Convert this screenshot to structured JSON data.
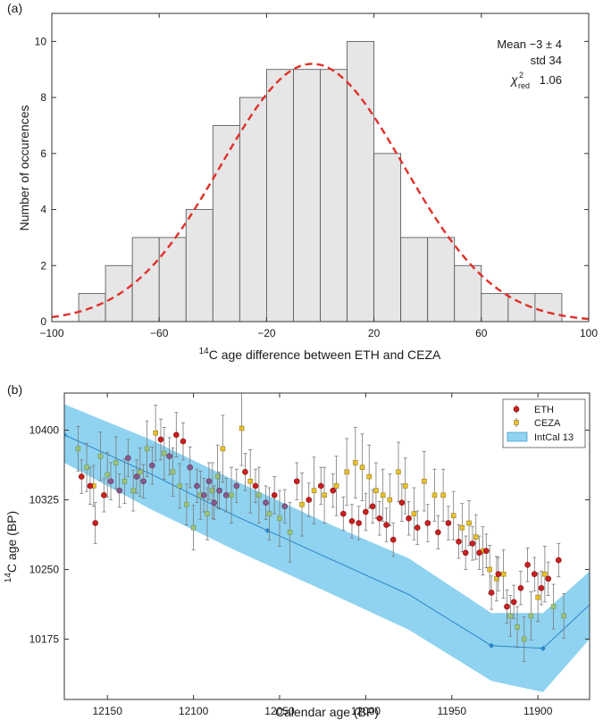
{
  "chart_data": [
    {
      "type": "bar",
      "panel_label": "(a)",
      "xlabel_sup": "14",
      "xlabel_rest": "C age difference between ETH and CEZA",
      "ylabel": "Number of occurences",
      "xlim": [
        -100,
        100
      ],
      "ylim": [
        0,
        11
      ],
      "bin_edges": [
        -90,
        -80,
        -70,
        -60,
        -50,
        -40,
        -30,
        -20,
        -10,
        0,
        10,
        20,
        30,
        40,
        50,
        60,
        70,
        80,
        90
      ],
      "counts": [
        1,
        2,
        3,
        3,
        4,
        7,
        8,
        9,
        9,
        9,
        10,
        6,
        3,
        3,
        2,
        1,
        1,
        1
      ],
      "bar_fill": "#e6e6e6",
      "fit": {
        "type": "gaussian",
        "mean": -3,
        "std": 34,
        "peak": 9.2,
        "color": "#e0302a"
      },
      "x_ticks": [
        -100,
        -60,
        -20,
        20,
        60,
        100
      ],
      "x_tick_labels": [
        "−100",
        "−60",
        "−20",
        "20",
        "60",
        "100"
      ],
      "y_ticks": [
        0,
        2,
        4,
        6,
        8,
        10
      ],
      "y_tick_labels": [
        "0",
        "2",
        "4",
        "6",
        "8",
        "10"
      ],
      "stats": {
        "mean_label": "Mean",
        "mean_value": "−3 ± 4",
        "std_label": "std",
        "std_value": "34",
        "chi_symbol": "χ",
        "chi_sup": "2",
        "chi_sub": "red",
        "chi_value": "1.06"
      }
    },
    {
      "type": "scatter",
      "panel_label": "(b)",
      "xlabel": "Calendar age (BP)",
      "ylabel_sup": "14",
      "ylabel_rest": "C age (BP)",
      "xlim": [
        12175,
        11870
      ],
      "ylim": [
        10110,
        10440
      ],
      "x_reversed": true,
      "x_ticks": [
        12150,
        12100,
        12050,
        12000,
        11950,
        11900
      ],
      "x_tick_labels": [
        "12150",
        "12100",
        "12050",
        "12000",
        "11950",
        "11900"
      ],
      "y_ticks": [
        10175,
        10250,
        10325,
        10400
      ],
      "y_tick_labels": [
        "10175",
        "10250",
        "10325",
        "10400"
      ],
      "legend": {
        "position": "top-right",
        "items": [
          "ETH",
          "CEZA",
          "IntCal 13"
        ]
      },
      "colors": {
        "eth": "#cc1f1f",
        "ceza": "#e8c12c",
        "intcal_band": "#8fd3f0",
        "intcal_line": "#2b84c8",
        "overlap": "#8a5a8c",
        "errorbar": "#7a7a7a"
      },
      "intcal": {
        "x": [
          12175,
          12125,
          12075,
          12025,
          11975,
          11927,
          11897,
          11870
        ],
        "y": [
          10395,
          10353,
          10307,
          10265,
          10223,
          10168,
          10165,
          10212
        ],
        "lo": [
          10365,
          10315,
          10270,
          10228,
          10185,
          10130,
          10118,
          10175
        ],
        "hi": [
          10428,
          10390,
          10345,
          10302,
          10262,
          10203,
          10203,
          10248
        ],
        "markers_x": [
          12175,
          12057,
          11927,
          11897
        ]
      },
      "series": [
        {
          "name": "ETH",
          "x": [
            12165,
            12160,
            12157,
            12152,
            12148,
            12143,
            12138,
            12133,
            12129,
            12124,
            12119,
            12114,
            12110,
            12106,
            12102,
            12098,
            12094,
            12091,
            12088,
            12085,
            12081,
            12075,
            12070,
            12064,
            12058,
            12053,
            12047,
            12040,
            12033,
            12026,
            12019,
            12013,
            12008,
            12004,
            12000,
            11996,
            11992,
            11988,
            11984,
            11979,
            11975,
            11970,
            11964,
            11958,
            11952,
            11946,
            11942,
            11938,
            11934,
            11930,
            11927,
            11923,
            11918,
            11914,
            11910,
            11906,
            11902,
            11898,
            11894,
            11888
          ],
          "y": [
            10350,
            10340,
            10300,
            10330,
            10345,
            10335,
            10370,
            10350,
            10345,
            10362,
            10390,
            10372,
            10395,
            10388,
            10360,
            10340,
            10330,
            10345,
            10322,
            10335,
            10330,
            10340,
            10355,
            10340,
            10322,
            10330,
            10318,
            10345,
            10325,
            10340,
            10335,
            10310,
            10302,
            10300,
            10312,
            10318,
            10305,
            10298,
            10282,
            10322,
            10305,
            10295,
            10300,
            10290,
            10300,
            10280,
            10268,
            10278,
            10268,
            10270,
            10225,
            10245,
            10210,
            10215,
            10230,
            10255,
            10245,
            10230,
            10240,
            10260
          ],
          "err": [
            18,
            20,
            22,
            18,
            20,
            18,
            20,
            18,
            18,
            20,
            22,
            20,
            24,
            20,
            22,
            18,
            18,
            20,
            18,
            20,
            18,
            18,
            20,
            18,
            18,
            20,
            18,
            20,
            18,
            20,
            18,
            18,
            18,
            18,
            20,
            18,
            18,
            18,
            18,
            20,
            18,
            18,
            20,
            18,
            18,
            18,
            18,
            18,
            18,
            18,
            18,
            18,
            18,
            18,
            18,
            18,
            18,
            18,
            18,
            18
          ]
        },
        {
          "name": "CEZA",
          "x": [
            12167,
            12162,
            12158,
            12154,
            12150,
            12145,
            12140,
            12135,
            12131,
            12127,
            12122,
            12117,
            12112,
            12108,
            12104,
            12100,
            12096,
            12092,
            12089,
            12086,
            12083,
            12078,
            12072,
            12067,
            12062,
            12056,
            12050,
            12044,
            12037,
            12030,
            12024,
            12017,
            12011,
            12006,
            12002,
            11998,
            11994,
            11990,
            11986,
            11981,
            11977,
            11972,
            11966,
            11960,
            11955,
            11949,
            11944,
            11940,
            11936,
            11932,
            11928,
            11924,
            11920,
            11916,
            11912,
            11908,
            11904,
            11900,
            11896,
            11891,
            11885
          ],
          "y": [
            10380,
            10360,
            10340,
            10372,
            10352,
            10365,
            10345,
            10335,
            10355,
            10380,
            10397,
            10375,
            10355,
            10340,
            10320,
            10295,
            10330,
            10310,
            10335,
            10350,
            10380,
            10330,
            10402,
            10345,
            10330,
            10310,
            10305,
            10290,
            10320,
            10335,
            10330,
            10340,
            10355,
            10365,
            10360,
            10350,
            10335,
            10330,
            10325,
            10355,
            10340,
            10310,
            10345,
            10330,
            10330,
            10308,
            10295,
            10300,
            10285,
            10270,
            10250,
            10240,
            10245,
            10200,
            10188,
            10175,
            10200,
            10220,
            10245,
            10210,
            10200
          ],
          "err": [
            24,
            26,
            22,
            26,
            24,
            28,
            24,
            22,
            26,
            30,
            30,
            28,
            26,
            24,
            22,
            24,
            26,
            28,
            30,
            34,
            36,
            30,
            40,
            34,
            30,
            28,
            30,
            32,
            34,
            36,
            30,
            32,
            36,
            38,
            36,
            34,
            30,
            28,
            28,
            32,
            30,
            28,
            32,
            28,
            28,
            26,
            26,
            24,
            24,
            26,
            26,
            24,
            26,
            22,
            22,
            24,
            26,
            26,
            30,
            24,
            24
          ]
        }
      ]
    }
  ]
}
